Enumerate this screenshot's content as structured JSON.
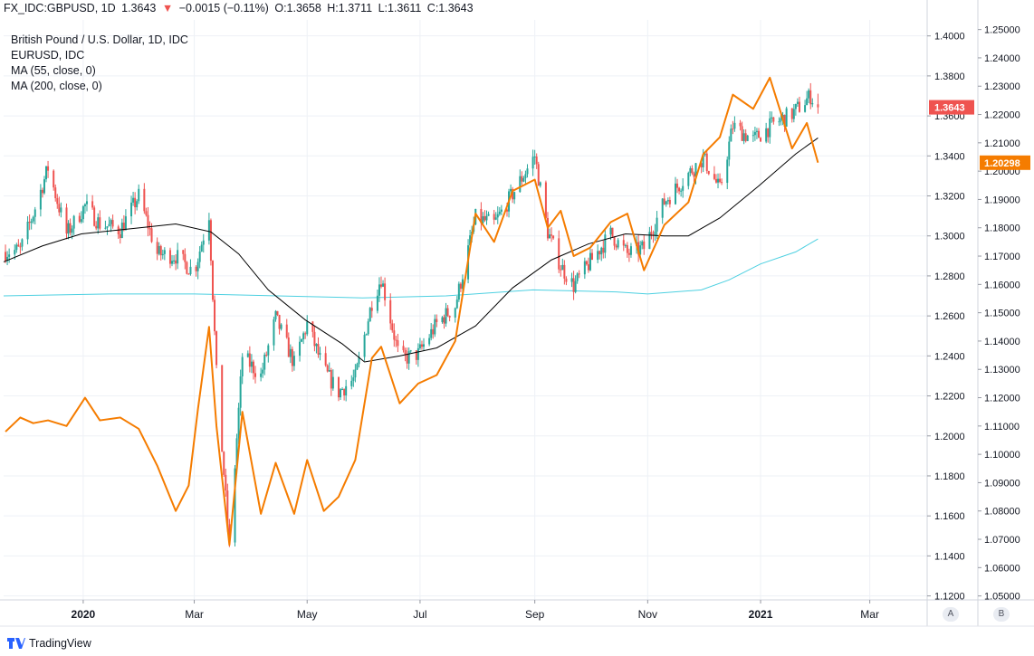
{
  "header": {
    "symbol": "FX_IDC:GBPUSD, 1D",
    "last": "1.3643",
    "change_arrow": "▼",
    "change": "−0.0015 (−0.11%)",
    "open_label": "O:",
    "open": "1.3658",
    "high_label": "H:",
    "high": "1.3711",
    "low_label": "L:",
    "low": "1.3611",
    "close_label": "C:",
    "close": "1.3643"
  },
  "legend": {
    "title": "British Pound / U.S. Dollar, 1D, IDC",
    "compare": "EURUSD, IDC",
    "ma55": "MA (55, close, 0)",
    "ma200": "MA (200, close, 0)"
  },
  "footer": {
    "brand": "TradingView"
  },
  "axis_buttons": {
    "a": "A",
    "b": "B"
  },
  "colors": {
    "up": "#26a69a",
    "down": "#ef5350",
    "eurusd": "#f57c00",
    "ma55": "#000000",
    "ma200": "#4dd0e1",
    "grid": "#eef1f6"
  },
  "chart_data": {
    "type": "line",
    "title": "British Pound / U.S. Dollar, 1D, IDC",
    "x_tick_labels": [
      "2020",
      "Mar",
      "May",
      "Jul",
      "Sep",
      "Nov",
      "2021",
      "Mar"
    ],
    "x_ticks": [
      "2020-01-01",
      "2020-03-01",
      "2020-05-01",
      "2020-07-01",
      "2020-09-01",
      "2020-11-01",
      "2021-01-01",
      "2021-03-01"
    ],
    "x_range": [
      "2019-11-19",
      "2021-04-01"
    ],
    "y_left": {
      "range": [
        1.118,
        1.408
      ],
      "ticks": [
        "1.4000",
        "1.3800",
        "1.3600",
        "1.3400",
        "1.3200",
        "1.3000",
        "1.2800",
        "1.2600",
        "1.2400",
        "1.2200",
        "1.2000",
        "1.1800",
        "1.1600",
        "1.1400",
        "1.1200"
      ],
      "current_label": "1.3643"
    },
    "y_right": {
      "range": [
        1.0486,
        1.2534
      ],
      "ticks": [
        "1.25000",
        "1.24000",
        "1.23000",
        "1.22000",
        "1.21000",
        "1.20000",
        "1.19000",
        "1.18000",
        "1.17000",
        "1.16000",
        "1.15000",
        "1.14000",
        "1.13000",
        "1.12000",
        "1.11000",
        "1.10000",
        "1.09000",
        "1.08000",
        "1.07000",
        "1.06000",
        "1.05000"
      ],
      "current_label": "1.20298"
    },
    "series": [
      {
        "name": "British Pound / U.S. Dollar, 1D, IDC",
        "type": "candlestick",
        "axis": "left",
        "close_path": [
          [
            "2019-11-20",
            1.292
          ],
          [
            "2019-11-28",
            1.293
          ],
          [
            "2019-12-05",
            1.311
          ],
          [
            "2019-12-13",
            1.334
          ],
          [
            "2019-12-23",
            1.301
          ],
          [
            "2020-01-02",
            1.315
          ],
          [
            "2020-01-10",
            1.306
          ],
          [
            "2020-01-21",
            1.303
          ],
          [
            "2020-01-31",
            1.32
          ],
          [
            "2020-02-10",
            1.291
          ],
          [
            "2020-02-20",
            1.29
          ],
          [
            "2020-03-01",
            1.282
          ],
          [
            "2020-03-09",
            1.311
          ],
          [
            "2020-03-13",
            1.231
          ],
          [
            "2020-03-20",
            1.144
          ],
          [
            "2020-03-27",
            1.24
          ],
          [
            "2020-04-06",
            1.23
          ],
          [
            "2020-04-14",
            1.259
          ],
          [
            "2020-04-24",
            1.236
          ],
          [
            "2020-05-01",
            1.256
          ],
          [
            "2020-05-10",
            1.233
          ],
          [
            "2020-05-18",
            1.222
          ],
          [
            "2020-05-27",
            1.229
          ],
          [
            "2020-06-05",
            1.267
          ],
          [
            "2020-06-10",
            1.279
          ],
          [
            "2020-06-20",
            1.238
          ],
          [
            "2020-06-30",
            1.241
          ],
          [
            "2020-07-10",
            1.256
          ],
          [
            "2020-07-20",
            1.265
          ],
          [
            "2020-07-31",
            1.309
          ],
          [
            "2020-08-10",
            1.306
          ],
          [
            "2020-08-20",
            1.321
          ],
          [
            "2020-09-01",
            1.34
          ],
          [
            "2020-09-08",
            1.302
          ],
          [
            "2020-09-15",
            1.285
          ],
          [
            "2020-09-22",
            1.275
          ],
          [
            "2020-10-01",
            1.287
          ],
          [
            "2020-10-12",
            1.301
          ],
          [
            "2020-10-21",
            1.291
          ],
          [
            "2020-10-30",
            1.294
          ],
          [
            "2020-11-10",
            1.317
          ],
          [
            "2020-11-23",
            1.331
          ],
          [
            "2020-12-01",
            1.339
          ],
          [
            "2020-12-10",
            1.323
          ],
          [
            "2020-12-17",
            1.355
          ],
          [
            "2020-12-28",
            1.348
          ],
          [
            "2021-01-08",
            1.356
          ],
          [
            "2021-01-18",
            1.361
          ],
          [
            "2021-01-28",
            1.37
          ],
          [
            "2021-02-01",
            1.3643
          ]
        ]
      },
      {
        "name": "EURUSD, IDC",
        "type": "line",
        "axis": "right",
        "points": [
          [
            "2019-11-20",
            1.108
          ],
          [
            "2019-11-28",
            1.113
          ],
          [
            "2019-12-05",
            1.111
          ],
          [
            "2019-12-13",
            1.112
          ],
          [
            "2019-12-23",
            1.11
          ],
          [
            "2020-01-02",
            1.12
          ],
          [
            "2020-01-10",
            1.112
          ],
          [
            "2020-01-21",
            1.113
          ],
          [
            "2020-01-31",
            1.109
          ],
          [
            "2020-02-10",
            1.096
          ],
          [
            "2020-02-20",
            1.08
          ],
          [
            "2020-02-27",
            1.089
          ],
          [
            "2020-03-03",
            1.116
          ],
          [
            "2020-03-09",
            1.145
          ],
          [
            "2020-03-13",
            1.11
          ],
          [
            "2020-03-20",
            1.068
          ],
          [
            "2020-03-27",
            1.115
          ],
          [
            "2020-04-06",
            1.079
          ],
          [
            "2020-04-14",
            1.097
          ],
          [
            "2020-04-24",
            1.079
          ],
          [
            "2020-05-01",
            1.098
          ],
          [
            "2020-05-10",
            1.08
          ],
          [
            "2020-05-18",
            1.085
          ],
          [
            "2020-05-27",
            1.098
          ],
          [
            "2020-06-05",
            1.134
          ],
          [
            "2020-06-10",
            1.138
          ],
          [
            "2020-06-20",
            1.118
          ],
          [
            "2020-06-30",
            1.125
          ],
          [
            "2020-07-10",
            1.128
          ],
          [
            "2020-07-20",
            1.14
          ],
          [
            "2020-07-31",
            1.185
          ],
          [
            "2020-08-10",
            1.175
          ],
          [
            "2020-08-20",
            1.193
          ],
          [
            "2020-09-01",
            1.197
          ],
          [
            "2020-09-08",
            1.18
          ],
          [
            "2020-09-15",
            1.186
          ],
          [
            "2020-09-22",
            1.17
          ],
          [
            "2020-10-01",
            1.173
          ],
          [
            "2020-10-12",
            1.182
          ],
          [
            "2020-10-21",
            1.185
          ],
          [
            "2020-10-30",
            1.165
          ],
          [
            "2020-11-10",
            1.181
          ],
          [
            "2020-11-23",
            1.189
          ],
          [
            "2020-12-01",
            1.206
          ],
          [
            "2020-12-10",
            1.212
          ],
          [
            "2020-12-17",
            1.227
          ],
          [
            "2020-12-28",
            1.222
          ],
          [
            "2021-01-06",
            1.233
          ],
          [
            "2021-01-18",
            1.208
          ],
          [
            "2021-01-26",
            1.217
          ],
          [
            "2021-02-01",
            1.203
          ]
        ]
      },
      {
        "name": "MA (55, close, 0)",
        "type": "line",
        "axis": "left",
        "points": [
          [
            "2019-11-19",
            1.287
          ],
          [
            "2019-12-10",
            1.295
          ],
          [
            "2019-12-31",
            1.301
          ],
          [
            "2020-01-31",
            1.304
          ],
          [
            "2020-02-20",
            1.306
          ],
          [
            "2020-03-10",
            1.302
          ],
          [
            "2020-03-25",
            1.291
          ],
          [
            "2020-04-10",
            1.273
          ],
          [
            "2020-04-30",
            1.258
          ],
          [
            "2020-05-20",
            1.246
          ],
          [
            "2020-06-01",
            1.237
          ],
          [
            "2020-06-20",
            1.24
          ],
          [
            "2020-07-10",
            1.244
          ],
          [
            "2020-07-31",
            1.255
          ],
          [
            "2020-08-20",
            1.274
          ],
          [
            "2020-09-10",
            1.288
          ],
          [
            "2020-09-30",
            1.296
          ],
          [
            "2020-10-20",
            1.301
          ],
          [
            "2020-11-10",
            1.3
          ],
          [
            "2020-11-23",
            1.3
          ],
          [
            "2020-12-10",
            1.309
          ],
          [
            "2020-12-31",
            1.325
          ],
          [
            "2021-01-20",
            1.341
          ],
          [
            "2021-02-01",
            1.349
          ]
        ]
      },
      {
        "name": "MA (200, close, 0)",
        "type": "line",
        "axis": "left",
        "points": [
          [
            "2019-11-19",
            1.27
          ],
          [
            "2020-01-15",
            1.271
          ],
          [
            "2020-03-01",
            1.271
          ],
          [
            "2020-04-15",
            1.27
          ],
          [
            "2020-05-31",
            1.269
          ],
          [
            "2020-07-15",
            1.27
          ],
          [
            "2020-08-31",
            1.273
          ],
          [
            "2020-10-15",
            1.272
          ],
          [
            "2020-11-01",
            1.271
          ],
          [
            "2020-11-30",
            1.273
          ],
          [
            "2020-12-15",
            1.278
          ],
          [
            "2021-01-01",
            1.286
          ],
          [
            "2021-01-20",
            1.292
          ],
          [
            "2021-02-01",
            1.2985
          ]
        ]
      }
    ]
  }
}
